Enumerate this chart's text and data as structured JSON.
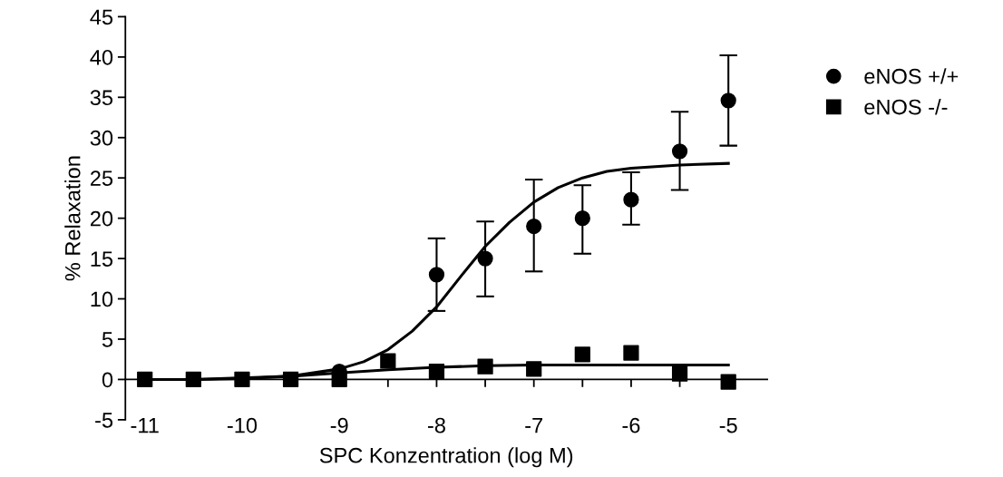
{
  "chart_data": {
    "type": "scatter",
    "xlabel": "SPC Konzentration (log M)",
    "ylabel": "% Relaxation",
    "xlim": [
      -11.2,
      -4.6
    ],
    "ylim": [
      -5,
      45
    ],
    "xticks": [
      -11,
      {
        "value": -10.5,
        "label": null
      },
      -10,
      {
        "value": -9.5,
        "label": null
      },
      -9,
      {
        "value": -8.5,
        "label": null
      },
      -8,
      {
        "value": -7.5,
        "label": null
      },
      -7,
      {
        "value": -6.5,
        "label": null
      },
      -6,
      {
        "value": -5.5,
        "label": null
      },
      -5
    ],
    "yticks": [
      -5,
      0,
      5,
      10,
      15,
      20,
      25,
      30,
      35,
      40,
      45
    ],
    "grid": false,
    "legend": "top right",
    "x": [
      -11,
      -10.5,
      -10,
      -9.5,
      -9,
      -8.5,
      -8,
      -7.5,
      -7,
      -6.5,
      -6,
      -5.5,
      -5
    ],
    "series": [
      {
        "name": "eNOS +/+",
        "color": "#000000",
        "marker": "circle",
        "values": [
          null,
          null,
          null,
          null,
          1,
          null,
          13,
          15,
          19,
          20,
          22.3,
          28.3,
          34.6
        ],
        "errors": [
          null,
          null,
          null,
          null,
          null,
          null,
          [
            8.5,
            17.5
          ],
          [
            10.3,
            19.6
          ],
          [
            13.4,
            24.8
          ],
          [
            15.6,
            24.1
          ],
          [
            19.2,
            25.7
          ],
          [
            23.5,
            33.2
          ],
          [
            29,
            40.2
          ]
        ]
      },
      {
        "name": "eNOS -/-",
        "color": "#000000",
        "marker": "square",
        "values": [
          0,
          0,
          0,
          0,
          0,
          2.3,
          1,
          1.6,
          1.3,
          3.1,
          3.3,
          0.7,
          -0.3
        ]
      },
      {
        "type": "line",
        "color": "#000000",
        "line_style": "solid",
        "x": [
          -11,
          -10.5,
          -10,
          -9.5,
          -9,
          -8.75,
          -8.5,
          -8.25,
          -8,
          -7.75,
          -7.5,
          -7.25,
          -7,
          -6.75,
          -6.5,
          -6.25,
          -6,
          -5.5,
          -5
        ],
        "values": [
          0,
          0,
          0.2,
          0.4,
          1.3,
          2.2,
          3.7,
          6,
          9,
          12.8,
          16.5,
          19.5,
          22,
          23.8,
          25,
          25.8,
          26.2,
          26.6,
          26.8
        ]
      },
      {
        "type": "line",
        "color": "#000000",
        "line_style": "solid",
        "x": [
          -11,
          -10.5,
          -10,
          -9.5,
          -9,
          -8.5,
          -8,
          -7.5,
          -7,
          -6.5,
          -6,
          -5.5,
          -5
        ],
        "values": [
          0,
          0,
          0.1,
          0.4,
          0.8,
          1.2,
          1.5,
          1.7,
          1.8,
          1.8,
          1.8,
          1.8,
          1.8
        ]
      }
    ]
  }
}
